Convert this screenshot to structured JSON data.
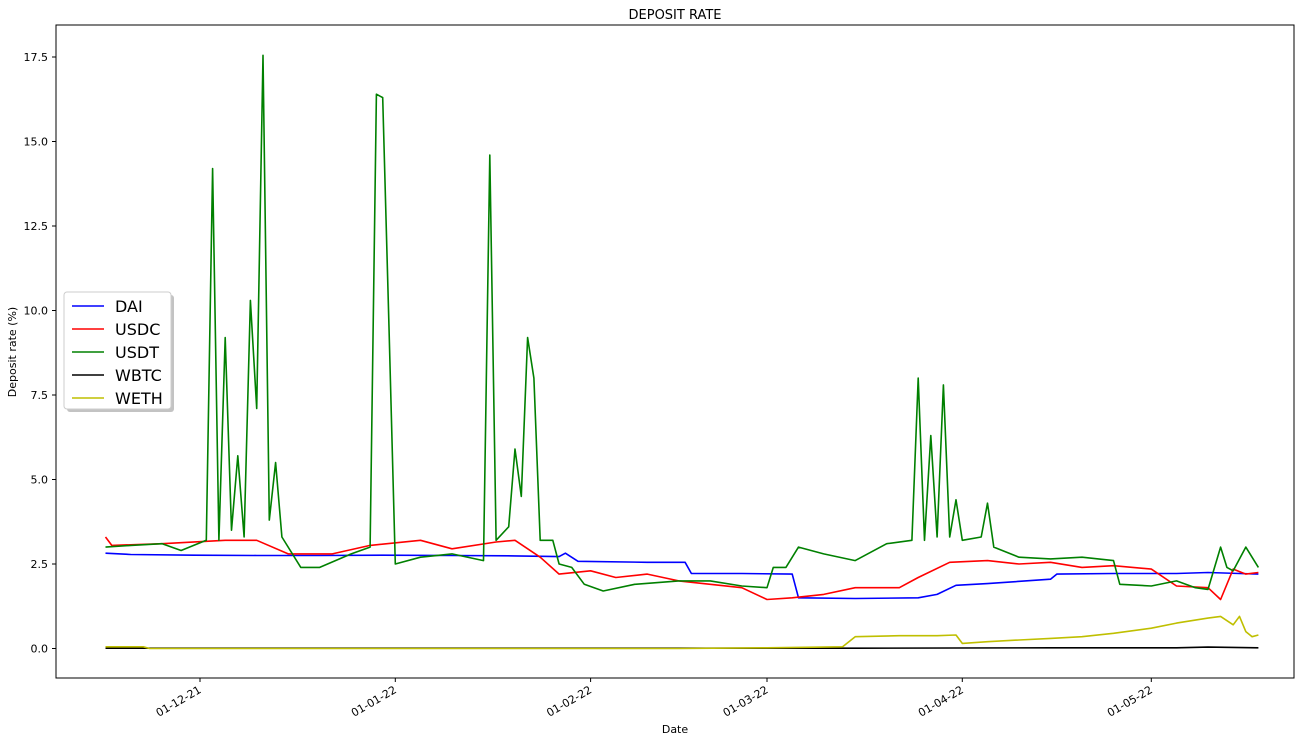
{
  "chart_data": {
    "type": "line",
    "title": "DEPOSIT RATE",
    "xlabel": "Date",
    "ylabel": "Deposit rate (%)",
    "ylim": [
      -0.9,
      18.5
    ],
    "x_ticks": [
      "01-12-21",
      "01-01-22",
      "01-02-22",
      "01-03-22",
      "01-04-22",
      "01-05-22"
    ],
    "y_ticks": [
      "0.0",
      "2.5",
      "5.0",
      "7.5",
      "10.0",
      "12.5",
      "15.0",
      "17.5"
    ],
    "legend_position": "center-left",
    "series": [
      {
        "name": "DAI",
        "color": "#0000ff",
        "points": [
          [
            "2021-11-16",
            2.82
          ],
          [
            "2021-11-20",
            2.78
          ],
          [
            "2021-11-30",
            2.76
          ],
          [
            "2021-12-10",
            2.75
          ],
          [
            "2021-12-20",
            2.75
          ],
          [
            "2021-12-30",
            2.76
          ],
          [
            "2022-01-10",
            2.75
          ],
          [
            "2022-01-20",
            2.74
          ],
          [
            "2022-01-27",
            2.72
          ],
          [
            "2022-01-28",
            2.82
          ],
          [
            "2022-01-30",
            2.58
          ],
          [
            "2022-02-10",
            2.55
          ],
          [
            "2022-02-16",
            2.55
          ],
          [
            "2022-02-17",
            2.22
          ],
          [
            "2022-02-25",
            2.22
          ],
          [
            "2022-03-05",
            2.2
          ],
          [
            "2022-03-06",
            1.5
          ],
          [
            "2022-03-15",
            1.48
          ],
          [
            "2022-03-25",
            1.5
          ],
          [
            "2022-03-28",
            1.6
          ],
          [
            "2022-03-31",
            1.87
          ],
          [
            "2022-04-05",
            1.92
          ],
          [
            "2022-04-15",
            2.05
          ],
          [
            "2022-04-16",
            2.2
          ],
          [
            "2022-04-25",
            2.22
          ],
          [
            "2022-05-05",
            2.22
          ],
          [
            "2022-05-10",
            2.25
          ],
          [
            "2022-05-15",
            2.22
          ],
          [
            "2022-05-18",
            2.2
          ]
        ]
      },
      {
        "name": "USDC",
        "color": "#ff0000",
        "points": [
          [
            "2021-11-16",
            3.3
          ],
          [
            "2021-11-17",
            3.05
          ],
          [
            "2021-11-25",
            3.1
          ],
          [
            "2021-12-05",
            3.2
          ],
          [
            "2021-12-10",
            3.2
          ],
          [
            "2021-12-15",
            2.8
          ],
          [
            "2021-12-22",
            2.8
          ],
          [
            "2021-12-28",
            3.05
          ],
          [
            "2022-01-05",
            3.2
          ],
          [
            "2022-01-10",
            2.95
          ],
          [
            "2022-01-17",
            3.15
          ],
          [
            "2022-01-20",
            3.2
          ],
          [
            "2022-01-24",
            2.7
          ],
          [
            "2022-01-27",
            2.2
          ],
          [
            "2022-02-01",
            2.3
          ],
          [
            "2022-02-05",
            2.1
          ],
          [
            "2022-02-10",
            2.2
          ],
          [
            "2022-02-15",
            2.0
          ],
          [
            "2022-02-20",
            1.9
          ],
          [
            "2022-02-25",
            1.8
          ],
          [
            "2022-03-01",
            1.45
          ],
          [
            "2022-03-05",
            1.5
          ],
          [
            "2022-03-10",
            1.6
          ],
          [
            "2022-03-15",
            1.8
          ],
          [
            "2022-03-22",
            1.8
          ],
          [
            "2022-03-25",
            2.1
          ],
          [
            "2022-03-30",
            2.55
          ],
          [
            "2022-04-05",
            2.6
          ],
          [
            "2022-04-10",
            2.5
          ],
          [
            "2022-04-15",
            2.55
          ],
          [
            "2022-04-20",
            2.4
          ],
          [
            "2022-04-25",
            2.45
          ],
          [
            "2022-05-01",
            2.35
          ],
          [
            "2022-05-05",
            1.85
          ],
          [
            "2022-05-10",
            1.8
          ],
          [
            "2022-05-12",
            1.45
          ],
          [
            "2022-05-14",
            2.35
          ],
          [
            "2022-05-16",
            2.2
          ],
          [
            "2022-05-18",
            2.25
          ]
        ]
      },
      {
        "name": "USDT",
        "color": "#008000",
        "points": [
          [
            "2021-11-16",
            3.0
          ],
          [
            "2021-11-20",
            3.05
          ],
          [
            "2021-11-25",
            3.1
          ],
          [
            "2021-11-28",
            2.9
          ],
          [
            "2021-12-02",
            3.2
          ],
          [
            "2021-12-03",
            14.2
          ],
          [
            "2021-12-04",
            3.2
          ],
          [
            "2021-12-05",
            9.2
          ],
          [
            "2021-12-06",
            3.5
          ],
          [
            "2021-12-07",
            5.7
          ],
          [
            "2021-12-08",
            3.3
          ],
          [
            "2021-12-09",
            10.3
          ],
          [
            "2021-12-10",
            7.1
          ],
          [
            "2021-12-11",
            17.55
          ],
          [
            "2021-12-12",
            3.8
          ],
          [
            "2021-12-13",
            5.5
          ],
          [
            "2021-12-14",
            3.3
          ],
          [
            "2021-12-17",
            2.4
          ],
          [
            "2021-12-20",
            2.4
          ],
          [
            "2021-12-25",
            2.8
          ],
          [
            "2021-12-28",
            3.0
          ],
          [
            "2021-12-29",
            16.4
          ],
          [
            "2021-12-30",
            16.3
          ],
          [
            "2021-12-31",
            9.5
          ],
          [
            "2022-01-01",
            2.5
          ],
          [
            "2022-01-05",
            2.7
          ],
          [
            "2022-01-10",
            2.8
          ],
          [
            "2022-01-15",
            2.6
          ],
          [
            "2022-01-16",
            14.6
          ],
          [
            "2022-01-17",
            3.2
          ],
          [
            "2022-01-19",
            3.6
          ],
          [
            "2022-01-20",
            5.9
          ],
          [
            "2022-01-21",
            4.5
          ],
          [
            "2022-01-22",
            9.2
          ],
          [
            "2022-01-23",
            8.0
          ],
          [
            "2022-01-24",
            3.2
          ],
          [
            "2022-01-26",
            3.2
          ],
          [
            "2022-01-27",
            2.5
          ],
          [
            "2022-01-29",
            2.4
          ],
          [
            "2022-01-31",
            1.9
          ],
          [
            "2022-02-03",
            1.7
          ],
          [
            "2022-02-08",
            1.9
          ],
          [
            "2022-02-15",
            2.0
          ],
          [
            "2022-02-20",
            2.0
          ],
          [
            "2022-02-25",
            1.85
          ],
          [
            "2022-03-01",
            1.8
          ],
          [
            "2022-03-02",
            2.4
          ],
          [
            "2022-03-04",
            2.4
          ],
          [
            "2022-03-06",
            3.0
          ],
          [
            "2022-03-10",
            2.8
          ],
          [
            "2022-03-15",
            2.6
          ],
          [
            "2022-03-20",
            3.1
          ],
          [
            "2022-03-24",
            3.2
          ],
          [
            "2022-03-25",
            8.0
          ],
          [
            "2022-03-26",
            3.2
          ],
          [
            "2022-03-27",
            6.3
          ],
          [
            "2022-03-28",
            3.3
          ],
          [
            "2022-03-29",
            7.8
          ],
          [
            "2022-03-30",
            3.3
          ],
          [
            "2022-03-31",
            4.4
          ],
          [
            "2022-04-01",
            3.2
          ],
          [
            "2022-04-04",
            3.3
          ],
          [
            "2022-04-05",
            4.3
          ],
          [
            "2022-04-06",
            3.0
          ],
          [
            "2022-04-10",
            2.7
          ],
          [
            "2022-04-15",
            2.65
          ],
          [
            "2022-04-20",
            2.7
          ],
          [
            "2022-04-25",
            2.6
          ],
          [
            "2022-04-26",
            1.9
          ],
          [
            "2022-05-01",
            1.85
          ],
          [
            "2022-05-05",
            2.0
          ],
          [
            "2022-05-08",
            1.8
          ],
          [
            "2022-05-10",
            1.75
          ],
          [
            "2022-05-12",
            3.0
          ],
          [
            "2022-05-13",
            2.4
          ],
          [
            "2022-05-14",
            2.3
          ],
          [
            "2022-05-16",
            3.0
          ],
          [
            "2022-05-18",
            2.4
          ]
        ]
      },
      {
        "name": "WBTC",
        "color": "#000000",
        "points": [
          [
            "2021-11-16",
            0.01
          ],
          [
            "2021-12-15",
            0.01
          ],
          [
            "2022-01-15",
            0.01
          ],
          [
            "2022-02-15",
            0.01
          ],
          [
            "2022-03-15",
            0.01
          ],
          [
            "2022-04-15",
            0.02
          ],
          [
            "2022-05-05",
            0.02
          ],
          [
            "2022-05-10",
            0.04
          ],
          [
            "2022-05-18",
            0.02
          ]
        ]
      },
      {
        "name": "WETH",
        "color": "#bfbf00",
        "points": [
          [
            "2021-11-16",
            0.05
          ],
          [
            "2021-11-22",
            0.05
          ],
          [
            "2021-11-23",
            0.0
          ],
          [
            "2021-12-15",
            0.0
          ],
          [
            "2022-01-15",
            0.0
          ],
          [
            "2022-02-15",
            0.0
          ],
          [
            "2022-03-01",
            0.02
          ],
          [
            "2022-03-13",
            0.05
          ],
          [
            "2022-03-15",
            0.35
          ],
          [
            "2022-03-22",
            0.38
          ],
          [
            "2022-03-28",
            0.38
          ],
          [
            "2022-03-31",
            0.4
          ],
          [
            "2022-04-01",
            0.15
          ],
          [
            "2022-04-05",
            0.2
          ],
          [
            "2022-04-10",
            0.25
          ],
          [
            "2022-04-15",
            0.3
          ],
          [
            "2022-04-20",
            0.35
          ],
          [
            "2022-04-25",
            0.45
          ],
          [
            "2022-05-01",
            0.6
          ],
          [
            "2022-05-05",
            0.75
          ],
          [
            "2022-05-10",
            0.9
          ],
          [
            "2022-05-12",
            0.95
          ],
          [
            "2022-05-14",
            0.7
          ],
          [
            "2022-05-15",
            0.95
          ],
          [
            "2022-05-16",
            0.5
          ],
          [
            "2022-05-17",
            0.35
          ],
          [
            "2022-05-18",
            0.4
          ]
        ]
      }
    ]
  }
}
